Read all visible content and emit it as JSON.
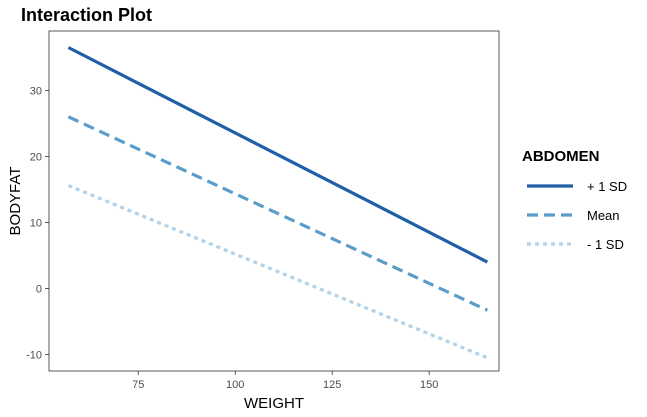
{
  "chart_data": {
    "type": "line",
    "title": "Interaction Plot",
    "xlabel": "WEIGHT",
    "ylabel": "BODYFAT",
    "xlim": [
      52,
      168
    ],
    "ylim": [
      -12.5,
      39
    ],
    "x_ticks": [
      75,
      100,
      125,
      150
    ],
    "y_ticks": [
      -10,
      0,
      10,
      20,
      30
    ],
    "grid": false,
    "legend": {
      "title": "ABDOMEN",
      "placement": "right"
    },
    "series": [
      {
        "name": "+ 1 SD",
        "x": [
          57,
          165
        ],
        "values": [
          36.5,
          4.0
        ],
        "color": "#1f5fa8",
        "dash": "solid"
      },
      {
        "name": "Mean",
        "x": [
          57,
          165
        ],
        "values": [
          26.0,
          -3.3
        ],
        "color": "#5a9dc9",
        "dash": "dashed"
      },
      {
        "name": "- 1 SD",
        "x": [
          57,
          165
        ],
        "values": [
          15.6,
          -10.5
        ],
        "color": "#b2d2e7",
        "dash": "dotted"
      }
    ]
  }
}
